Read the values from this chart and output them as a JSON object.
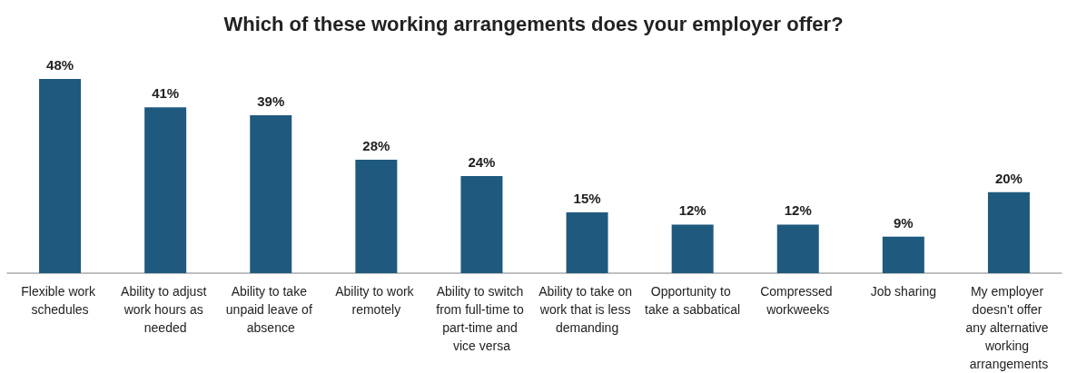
{
  "chart_data": {
    "type": "bar",
    "title": "Which of these working arrangements does your employer offer?",
    "categories": [
      "Flexible work schedules",
      "Ability to adjust work hours as needed",
      "Ability to take unpaid leave of absence",
      "Ability to work remotely",
      "Ability to switch from full-time to part-time and vice versa",
      "Ability to take on work that is less demanding",
      "Opportunity to take a sabbatical",
      "Compressed workweeks",
      "Job sharing",
      "My employer doesn’t offer any alternative working arrangements"
    ],
    "values": [
      48,
      41,
      39,
      28,
      24,
      15,
      12,
      12,
      9,
      20
    ],
    "value_labels": [
      "48%",
      "41%",
      "39%",
      "28%",
      "24%",
      "15%",
      "12%",
      "12%",
      "9%",
      "20%"
    ],
    "color": "#1f5a7e"
  }
}
